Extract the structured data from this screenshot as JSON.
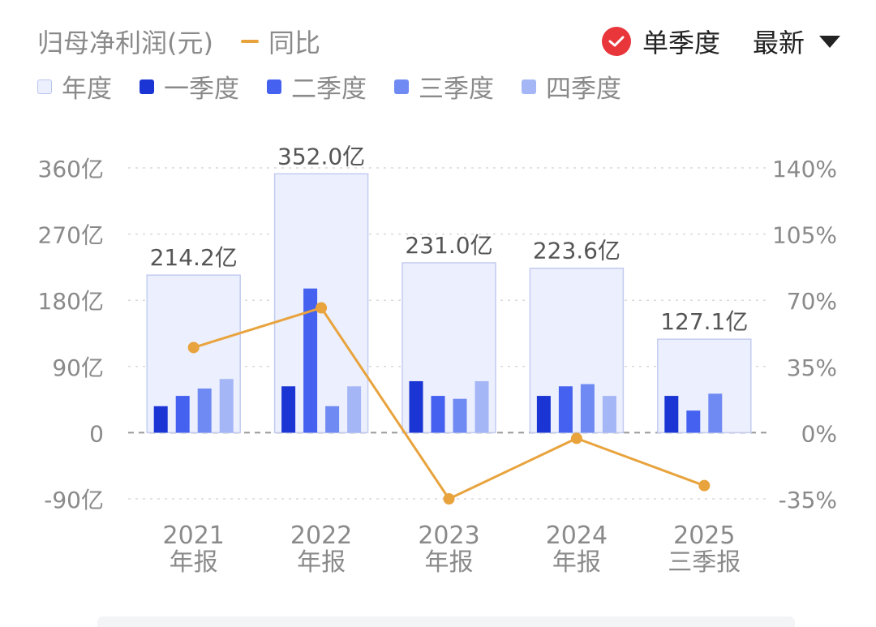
{
  "header": {
    "metric_title": "归母净利润(元)",
    "line_legend_label": "同比",
    "mode_label": "单季度",
    "sort_label": "最新",
    "check_icon": "check-circle-icon",
    "dropdown_icon": "caret-down-icon"
  },
  "legend": [
    {
      "label": "年度",
      "color": "#eceffd",
      "border": "#b9c4ef"
    },
    {
      "label": "一季度",
      "color": "#1a35d4"
    },
    {
      "label": "二季度",
      "color": "#4561ef"
    },
    {
      "label": "三季度",
      "color": "#6f8af2"
    },
    {
      "label": "四季度",
      "color": "#a5b6f6"
    }
  ],
  "colors": {
    "annual_fill": "#eceffd",
    "annual_border": "#c3ccf0",
    "line": "#e8a33d",
    "check": "#e8363b",
    "axis_text": "#8a8a8a",
    "value_text": "#555555",
    "grid": "#d9d9d9"
  },
  "chart_data": {
    "type": "bar",
    "categories": [
      {
        "year": "2021",
        "period": "年报"
      },
      {
        "year": "2022",
        "period": "年报"
      },
      {
        "year": "2023",
        "period": "年报"
      },
      {
        "year": "2024",
        "period": "年报"
      },
      {
        "year": "2025",
        "period": "三季报"
      }
    ],
    "annual": {
      "values": [
        214.2,
        352.0,
        231.0,
        223.6,
        127.1
      ],
      "labels": [
        "214.2亿",
        "352.0亿",
        "231.0亿",
        "223.6亿",
        "127.1亿"
      ]
    },
    "quarters": [
      {
        "name": "一季度",
        "values": [
          36,
          63,
          70,
          50,
          50
        ]
      },
      {
        "name": "二季度",
        "values": [
          50,
          196,
          50,
          63,
          30
        ]
      },
      {
        "name": "三季度",
        "values": [
          60,
          36,
          46,
          66,
          53
        ]
      },
      {
        "name": "四季度",
        "values": [
          73,
          63,
          70,
          50,
          null
        ]
      }
    ],
    "yoy": {
      "name": "同比",
      "values": [
        45,
        66,
        -35,
        -3,
        -28
      ]
    },
    "y_left": {
      "min": -90,
      "max": 360,
      "ticks": [
        360,
        270,
        180,
        90,
        0,
        -90
      ],
      "tick_labels": [
        "360亿",
        "270亿",
        "180亿",
        "90亿",
        "0",
        "-90亿"
      ]
    },
    "y_right": {
      "min": -35,
      "max": 140,
      "ticks": [
        140,
        105,
        70,
        35,
        0,
        -35
      ],
      "tick_labels": [
        "140%",
        "105%",
        "70%",
        "35%",
        "0%",
        "-35%"
      ]
    },
    "grid": true
  }
}
